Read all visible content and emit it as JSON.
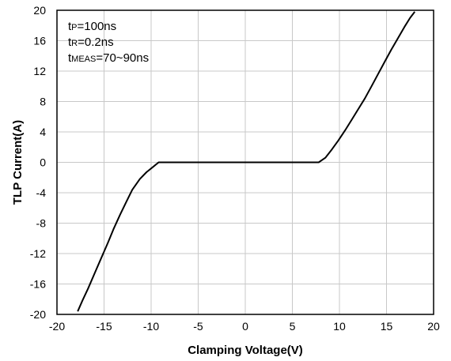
{
  "chart_data": {
    "type": "line",
    "title": "",
    "xlabel": "Clamping Voltage(V)",
    "ylabel": "TLP Current(A)",
    "xlim": [
      -20,
      20
    ],
    "ylim": [
      -20,
      20
    ],
    "x_ticks": [
      -20,
      -15,
      -10,
      -5,
      0,
      5,
      10,
      15,
      20
    ],
    "y_ticks": [
      20,
      16,
      12,
      8,
      4,
      0,
      -4,
      -8,
      -12,
      -16,
      -20
    ],
    "grid": true,
    "legend": "none",
    "annotations": [
      {
        "prefix": "t",
        "sub": "P",
        "rest": "=100ns"
      },
      {
        "prefix": "t",
        "sub": "R",
        "rest": "=0.2ns"
      },
      {
        "prefix": "t",
        "sub": "MEAS",
        "rest": "=70~90ns"
      }
    ],
    "series": [
      {
        "color": "#000000",
        "x": [
          -17.8,
          -17.3,
          -16.7,
          -16.0,
          -15.3,
          -14.6,
          -14.0,
          -13.3,
          -12.6,
          -12.0,
          -11.2,
          -10.5,
          -9.8,
          -9.2,
          -8.5,
          -8.0,
          -7.0,
          -5.0,
          0.0,
          5.0,
          7.0,
          7.8,
          8.5,
          9.2,
          9.9,
          10.6,
          11.3,
          12.0,
          12.7,
          13.4,
          14.1,
          14.8,
          15.5,
          16.2,
          16.9,
          17.5,
          18.0
        ],
        "y": [
          -19.6,
          -18.2,
          -16.6,
          -14.6,
          -12.6,
          -10.6,
          -8.8,
          -6.9,
          -5.1,
          -3.6,
          -2.2,
          -1.3,
          -0.6,
          0.0,
          0.0,
          0.0,
          0.0,
          0.0,
          0.0,
          0.0,
          0.0,
          0.0,
          0.6,
          1.7,
          2.9,
          4.2,
          5.6,
          7.0,
          8.4,
          10.0,
          11.6,
          13.2,
          14.8,
          16.3,
          17.8,
          19.0,
          19.8
        ]
      }
    ]
  }
}
